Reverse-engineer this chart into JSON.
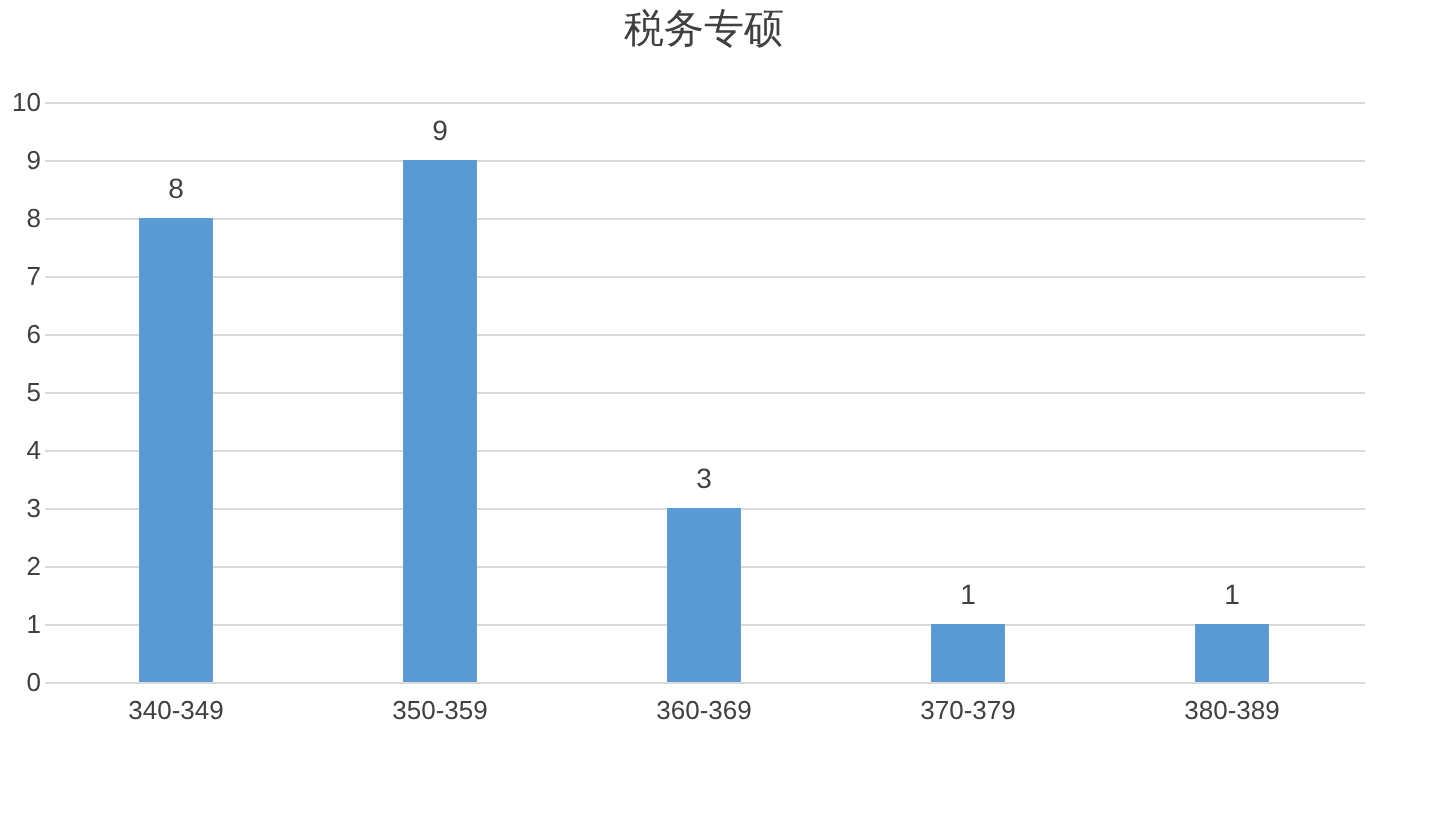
{
  "chart_data": {
    "type": "bar",
    "title": "税务专硕",
    "categories": [
      "340-349",
      "350-359",
      "360-369",
      "370-379",
      "380-389"
    ],
    "values": [
      8,
      9,
      3,
      1,
      1
    ],
    "color": "#5b9bd5",
    "ylim": [
      0,
      10
    ],
    "yticks": [
      0,
      1,
      2,
      3,
      4,
      5,
      6,
      7,
      8,
      9,
      10
    ],
    "grid": "y",
    "data_labels": true
  }
}
